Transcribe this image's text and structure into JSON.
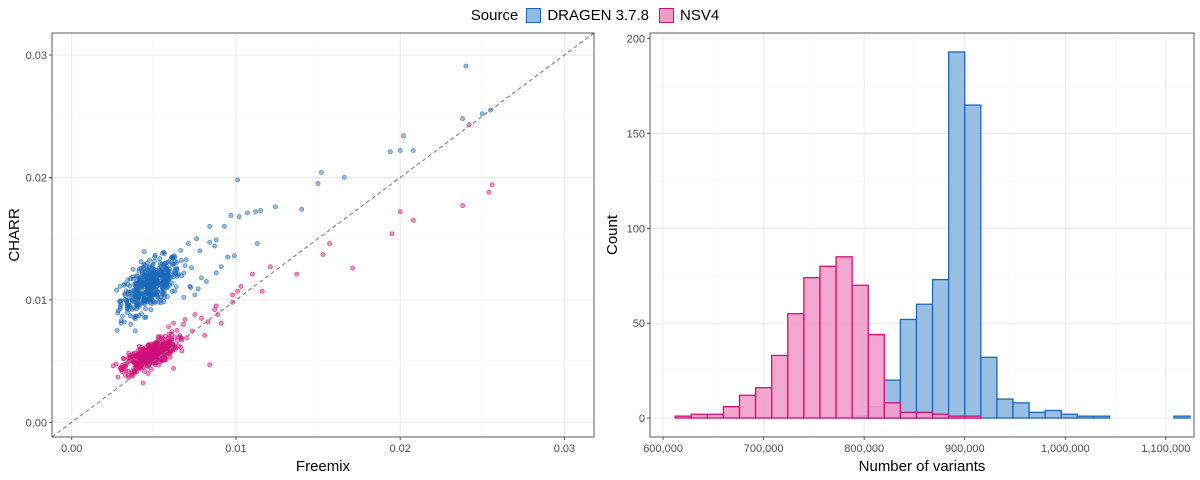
{
  "legend": {
    "title": "Source",
    "items": [
      {
        "label": "DRAGEN 3.7.8",
        "fill": "#93bbe3",
        "stroke": "#1a68b8"
      },
      {
        "label": "NSV4",
        "fill": "#f29cc9",
        "stroke": "#d10f7a"
      }
    ]
  },
  "colors": {
    "dragen": "#1a68b8",
    "nsv4": "#d10f7a",
    "panel_border": "#333333",
    "grid_major": "#ebebeb",
    "grid_minor": "#f5f5f5",
    "identity_line": "#7f7f7f"
  },
  "chart_data": [
    {
      "type": "scatter",
      "title": "",
      "xlabel": "Freemix",
      "ylabel": "CHARR",
      "xlim": [
        -0.0012,
        0.0318
      ],
      "ylim": [
        -0.0012,
        0.0318
      ],
      "x_ticks": [
        "0.00",
        "0.01",
        "0.02",
        "0.03"
      ],
      "y_ticks": [
        "0.00",
        "0.01",
        "0.02",
        "0.03"
      ],
      "x_tick_values": [
        0,
        0.01,
        0.02,
        0.03
      ],
      "y_tick_values": [
        0,
        0.01,
        0.02,
        0.03
      ],
      "grid": true,
      "reference_line": "y = x (dashed)",
      "series": [
        {
          "name": "DRAGEN 3.7.8",
          "cluster": {
            "n": 460,
            "x_mean": 0.0048,
            "x_sd": 0.0009,
            "y_mean": 0.0112,
            "y_sd": 0.0011,
            "corr": 0.55
          },
          "points": [
            [
              0.024,
              0.0291
            ],
            [
              0.0255,
              0.0255
            ],
            [
              0.025,
              0.0252
            ],
            [
              0.0238,
              0.0248
            ],
            [
              0.0202,
              0.0234
            ],
            [
              0.02,
              0.0222
            ],
            [
              0.0194,
              0.0221
            ],
            [
              0.0208,
              0.0222
            ],
            [
              0.0152,
              0.0204
            ],
            [
              0.0166,
              0.02
            ],
            [
              0.015,
              0.0195
            ],
            [
              0.0101,
              0.0198
            ],
            [
              0.0124,
              0.0176
            ],
            [
              0.0115,
              0.0173
            ],
            [
              0.014,
              0.0174
            ],
            [
              0.0112,
              0.0172
            ],
            [
              0.0107,
              0.0171
            ],
            [
              0.0097,
              0.0169
            ],
            [
              0.0102,
              0.0168
            ],
            [
              0.0093,
              0.016
            ],
            [
              0.0084,
              0.016
            ],
            [
              0.0088,
              0.0149
            ],
            [
              0.0076,
              0.015
            ],
            [
              0.0084,
              0.0147
            ],
            [
              0.0078,
              0.014
            ],
            [
              0.0071,
              0.0146
            ],
            [
              0.0087,
              0.0144
            ],
            [
              0.0113,
              0.0146
            ],
            [
              0.0095,
              0.0135
            ],
            [
              0.0069,
              0.0128
            ],
            [
              0.0062,
              0.0119
            ],
            [
              0.0099,
              0.0136
            ],
            [
              0.0091,
              0.0127
            ],
            [
              0.0088,
              0.0122
            ],
            [
              0.0079,
              0.0118
            ],
            [
              0.0072,
              0.0111
            ],
            [
              0.0082,
              0.0115
            ],
            [
              0.0077,
              0.0109
            ],
            [
              0.0075,
              0.0104
            ],
            [
              0.0032,
              0.0082
            ],
            [
              0.0036,
              0.008
            ],
            [
              0.003,
              0.0081
            ],
            [
              0.0038,
              0.0086
            ],
            [
              0.0034,
              0.0093
            ],
            [
              0.0041,
              0.0087
            ]
          ]
        },
        {
          "name": "NSV4",
          "cluster": {
            "n": 430,
            "x_mean": 0.0048,
            "x_sd": 0.0008,
            "y_mean": 0.0055,
            "y_sd": 0.0007,
            "corr": 0.7
          },
          "points": [
            [
              0.0242,
              0.0243
            ],
            [
              0.0256,
              0.0194
            ],
            [
              0.0254,
              0.0188
            ],
            [
              0.0238,
              0.0177
            ],
            [
              0.02,
              0.0172
            ],
            [
              0.0208,
              0.0165
            ],
            [
              0.0195,
              0.0154
            ],
            [
              0.0157,
              0.0146
            ],
            [
              0.0153,
              0.0137
            ],
            [
              0.0171,
              0.0126
            ],
            [
              0.0121,
              0.0127
            ],
            [
              0.0137,
              0.0121
            ],
            [
              0.011,
              0.0121
            ],
            [
              0.0103,
              0.0111
            ],
            [
              0.0101,
              0.0107
            ],
            [
              0.0116,
              0.0107
            ],
            [
              0.0098,
              0.0104
            ],
            [
              0.0098,
              0.0098
            ],
            [
              0.0088,
              0.0095
            ],
            [
              0.0087,
              0.0092
            ],
            [
              0.0089,
              0.0088
            ],
            [
              0.0075,
              0.0088
            ],
            [
              0.0083,
              0.0082
            ],
            [
              0.0069,
              0.0084
            ],
            [
              0.0079,
              0.0085
            ],
            [
              0.0068,
              0.008
            ],
            [
              0.0091,
              0.0081
            ],
            [
              0.0062,
              0.0081
            ],
            [
              0.0059,
              0.0078
            ],
            [
              0.0061,
              0.0074
            ],
            [
              0.0081,
              0.0071
            ],
            [
              0.007,
              0.0069
            ],
            [
              0.006,
              0.006
            ],
            [
              0.0084,
              0.0047
            ],
            [
              0.0062,
              0.0044
            ]
          ]
        }
      ]
    },
    {
      "type": "bar",
      "subtype": "histogram",
      "title": "",
      "xlabel": "Number of variants",
      "ylabel": "Count",
      "xlim": [
        587000,
        1128000
      ],
      "ylim": [
        -10,
        203
      ],
      "x_ticks": [
        "600,000",
        "700,000",
        "800,000",
        "900,000",
        "1,000,000",
        "1,100,000"
      ],
      "x_tick_values": [
        600000,
        700000,
        800000,
        900000,
        1000000,
        1100000
      ],
      "y_ticks": [
        "0",
        "50",
        "100",
        "150",
        "200"
      ],
      "y_tick_values": [
        0,
        50,
        100,
        150,
        200
      ],
      "bin_start": 612000,
      "bin_width": 16000,
      "grid": true,
      "series": [
        {
          "name": "DRAGEN 3.7.8",
          "values": [
            0,
            0,
            0,
            0,
            0,
            0,
            0,
            0,
            0,
            0,
            0,
            1,
            6,
            20,
            52,
            60,
            73,
            193,
            165,
            32,
            10,
            8,
            3,
            4,
            2,
            1,
            1,
            0,
            0,
            0,
            0,
            1
          ]
        },
        {
          "name": "NSV4",
          "values": [
            1,
            2,
            2,
            6,
            12,
            16,
            33,
            55,
            74,
            80,
            85,
            70,
            44,
            8,
            3,
            3,
            2,
            1,
            1,
            0,
            0,
            0,
            0,
            0,
            0,
            0,
            0,
            0,
            0,
            0,
            0,
            0
          ]
        }
      ]
    }
  ]
}
